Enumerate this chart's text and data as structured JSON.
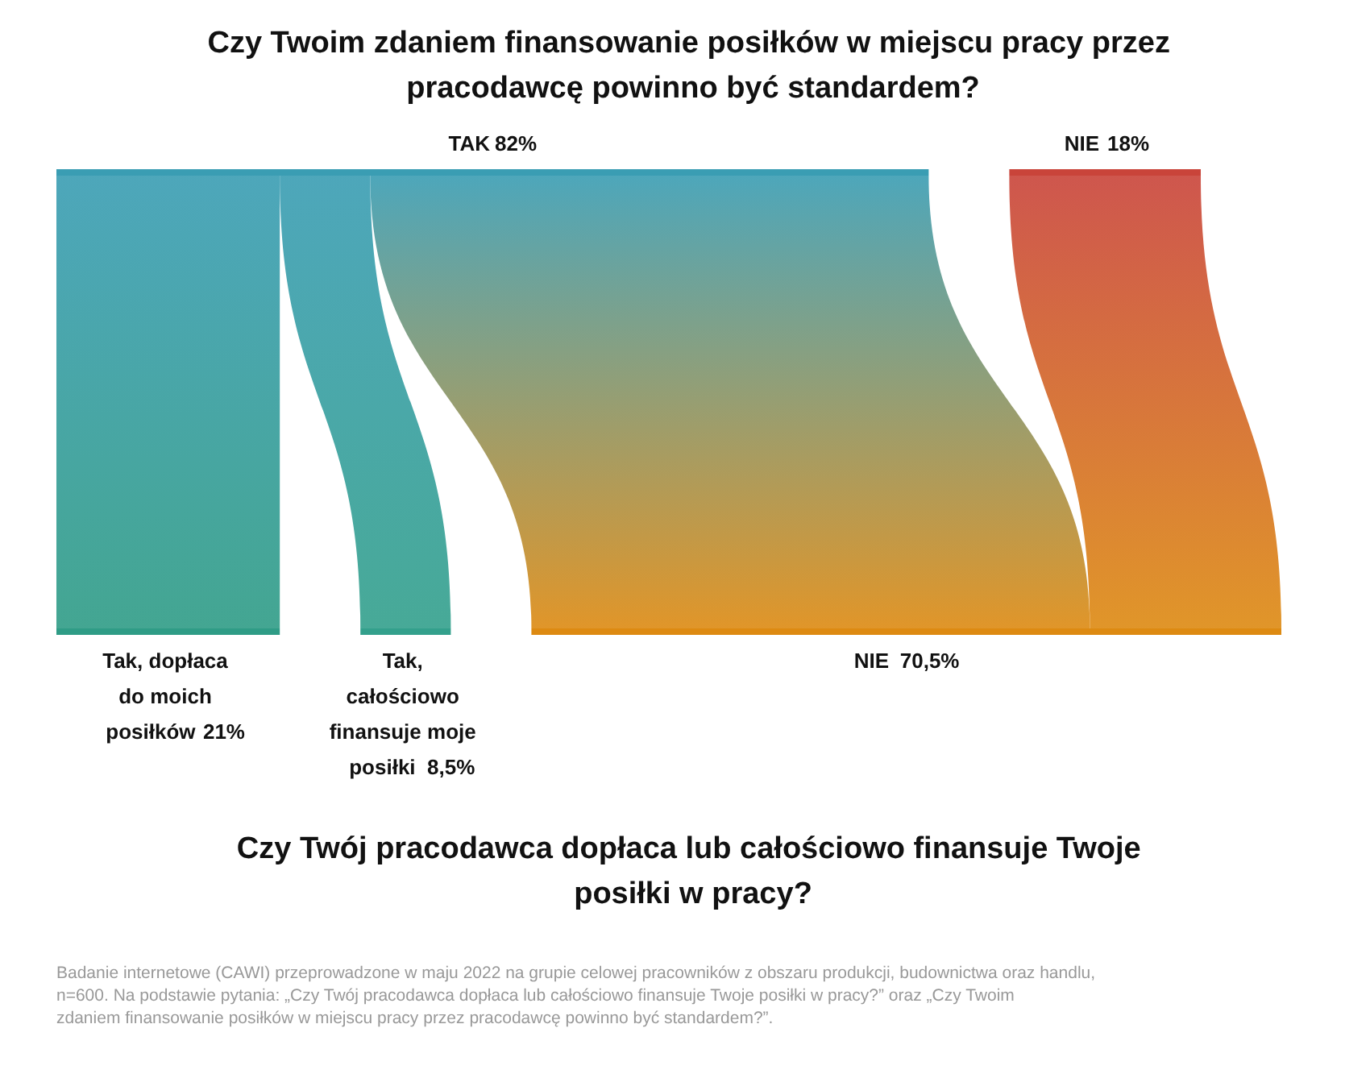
{
  "chart_data": {
    "type": "other",
    "title": "Czy Twoim zdaniem finansowanie posiłków w miejscu pracy przez pracodawcę powinno być standardem?",
    "xlabel": "Czy Twój pracodawca dopłaca lub całościowo finansuje Twoje posiłki w pracy?",
    "categories": [
      "TAK",
      "NIE",
      "Tak, dopłaca do moich posiłków",
      "Tak, całościowo finansuje moje posiłki",
      "NIE"
    ],
    "series": [
      {
        "values": [
          82,
          18,
          null,
          null,
          null
        ],
        "value_labels": [
          "82%",
          "18%",
          null,
          null,
          null
        ]
      },
      {
        "values": [
          null,
          null,
          21,
          8.5,
          70.5
        ],
        "value_labels": [
          null,
          null,
          "21%",
          "8,5%",
          "70,5%"
        ]
      }
    ],
    "colors": [
      "#3a9db3",
      "#c9443a",
      "#2f9c86",
      "#33a08c",
      "#dd8a12"
    ],
    "annotations": [
      "Badanie internetowe (CAWI) przeprowadzone w maju 2022 na grupie celowej pracowników z obszaru produkcji, budownictwa oraz handlu, n=600. Na podstawie pytania: „Czy Twój pracodawca dopłaca lub całościowo finansuje Twoje posiłki w pracy?” oraz „Czy Twoim zdaniem finansowanie posiłków w miejscu pracy przez pracodawcę powinno być standardem?”."
    ]
  }
}
